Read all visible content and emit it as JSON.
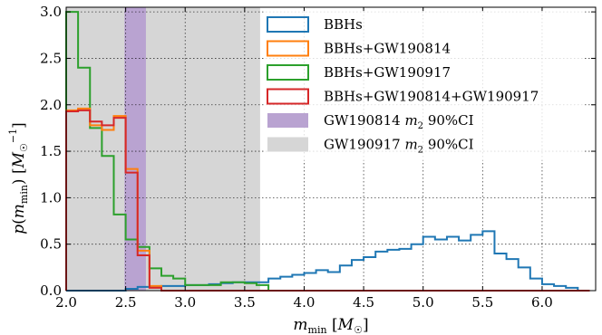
{
  "chart_data": {
    "type": "histogram",
    "xlabel": "m_min [M_☉]",
    "ylabel": "p(m_min) [M_☉^-1]",
    "xlim": [
      2.0,
      6.45
    ],
    "ylim": [
      0.0,
      3.05
    ],
    "xticks": [
      "2.0",
      "2.5",
      "3.0",
      "3.5",
      "4.0",
      "4.5",
      "5.0",
      "5.5",
      "6.0"
    ],
    "yticks": [
      "0.0",
      "0.5",
      "1.0",
      "1.5",
      "2.0",
      "2.5",
      "3.0"
    ],
    "grid": true,
    "legend_placement": "upper-right",
    "bands": [
      {
        "name": "GW190814 m₂ 90%CI",
        "x": [
          2.49,
          2.67
        ],
        "color": "#b9a3d1"
      },
      {
        "name": "GW190917 m₂ 90%CI",
        "x": [
          2.0,
          3.63
        ],
        "color": "#d6d6d6"
      }
    ],
    "series": [
      {
        "name": "BBHs",
        "color": "#1f77b4",
        "edges": [
          2.0,
          2.1,
          2.2,
          2.3,
          2.4,
          2.5,
          2.6,
          2.7,
          2.8,
          2.9,
          3.0,
          3.1,
          3.2,
          3.3,
          3.4,
          3.5,
          3.6,
          3.7,
          3.8,
          3.9,
          4.0,
          4.1,
          4.2,
          4.3,
          4.4,
          4.5,
          4.6,
          4.7,
          4.8,
          4.9,
          5.0,
          5.1,
          5.2,
          5.3,
          5.4,
          5.5,
          5.6,
          5.7,
          5.8,
          5.9,
          6.0,
          6.1,
          6.2,
          6.3,
          6.4
        ],
        "values": [
          0.0,
          0.0,
          0.0,
          0.0,
          0.0,
          0.02,
          0.04,
          0.04,
          0.05,
          0.05,
          0.06,
          0.06,
          0.07,
          0.08,
          0.09,
          0.09,
          0.09,
          0.13,
          0.15,
          0.17,
          0.19,
          0.22,
          0.2,
          0.27,
          0.33,
          0.36,
          0.42,
          0.44,
          0.45,
          0.5,
          0.58,
          0.55,
          0.58,
          0.54,
          0.6,
          0.64,
          0.4,
          0.34,
          0.25,
          0.13,
          0.07,
          0.05,
          0.03,
          0.0
        ]
      },
      {
        "name": "BBHs+GW190814",
        "color": "#ff7f0e",
        "edges": [
          2.0,
          2.1,
          2.2,
          2.3,
          2.4,
          2.5,
          2.6,
          2.7,
          2.8,
          2.9,
          3.0,
          3.1,
          3.2,
          3.3,
          3.4,
          3.5,
          3.6,
          3.7,
          3.8,
          3.9,
          4.0,
          4.1,
          4.2,
          4.3,
          4.4,
          4.5,
          4.6,
          4.7,
          4.8,
          4.9,
          5.0,
          5.1,
          5.2,
          5.3,
          5.4,
          5.5,
          5.6,
          5.7,
          5.8,
          5.9,
          6.0,
          6.1,
          6.2,
          6.3,
          6.4
        ],
        "values": [
          1.94,
          1.96,
          1.78,
          1.73,
          1.88,
          1.31,
          0.43,
          0.05,
          0,
          0,
          0,
          0,
          0,
          0,
          0,
          0,
          0,
          0,
          0,
          0,
          0,
          0,
          0,
          0,
          0,
          0,
          0,
          0,
          0,
          0,
          0,
          0,
          0,
          0,
          0,
          0,
          0,
          0,
          0,
          0,
          0,
          0,
          0,
          0
        ]
      },
      {
        "name": "BBHs+GW190917",
        "color": "#2ca02c",
        "edges": [
          2.0,
          2.1,
          2.2,
          2.3,
          2.4,
          2.5,
          2.6,
          2.7,
          2.8,
          2.9,
          3.0,
          3.1,
          3.2,
          3.3,
          3.4,
          3.5,
          3.6,
          3.7,
          3.8,
          3.9,
          4.0,
          4.1,
          4.2,
          4.3,
          4.4,
          4.5,
          4.6,
          4.7,
          4.8,
          4.9,
          5.0,
          5.1,
          5.2,
          5.3,
          5.4,
          5.5,
          5.6,
          5.7,
          5.8,
          5.9,
          6.0,
          6.1,
          6.2,
          6.3,
          6.4
        ],
        "values": [
          3.0,
          2.4,
          1.75,
          1.45,
          0.82,
          0.55,
          0.47,
          0.24,
          0.16,
          0.13,
          0.06,
          0.06,
          0.06,
          0.09,
          0.09,
          0.08,
          0.06,
          0.0,
          0,
          0,
          0,
          0,
          0,
          0,
          0,
          0,
          0,
          0,
          0,
          0,
          0,
          0,
          0,
          0,
          0,
          0,
          0,
          0,
          0,
          0,
          0,
          0,
          0,
          0
        ]
      },
      {
        "name": "BBHs+GW190814+GW190917",
        "color": "#d62728",
        "edges": [
          2.0,
          2.1,
          2.2,
          2.3,
          2.4,
          2.5,
          2.6,
          2.7,
          2.8,
          2.9,
          3.0,
          3.1,
          3.2,
          3.3,
          3.4,
          3.5,
          3.6,
          3.7,
          3.8,
          3.9,
          4.0,
          4.1,
          4.2,
          4.3,
          4.4,
          4.5,
          4.6,
          4.7,
          4.8,
          4.9,
          5.0,
          5.1,
          5.2,
          5.3,
          5.4,
          5.5,
          5.6,
          5.7,
          5.8,
          5.9,
          6.0,
          6.1,
          6.2,
          6.3,
          6.4
        ],
        "values": [
          1.93,
          1.94,
          1.82,
          1.78,
          1.86,
          1.27,
          0.38,
          0.03,
          0,
          0,
          0,
          0,
          0,
          0,
          0,
          0,
          0,
          0,
          0,
          0,
          0,
          0,
          0,
          0,
          0,
          0,
          0,
          0,
          0,
          0,
          0,
          0,
          0,
          0,
          0,
          0,
          0,
          0,
          0,
          0,
          0,
          0,
          0,
          0
        ]
      }
    ]
  }
}
